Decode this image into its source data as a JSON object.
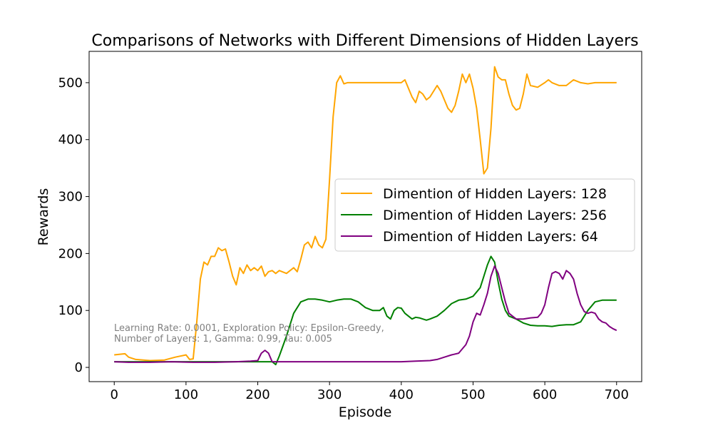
{
  "chart_data": {
    "type": "line",
    "title": "Comparisons of Networks with Different Dimensions of Hidden Layers",
    "xlabel": "Episode",
    "ylabel": "Rewards",
    "xlim": [
      -35,
      735
    ],
    "ylim": [
      -25,
      555
    ],
    "xticks": [
      0,
      100,
      200,
      300,
      400,
      500,
      600,
      700
    ],
    "yticks": [
      0,
      100,
      200,
      300,
      400,
      500
    ],
    "grid": false,
    "legend_position": "center-right",
    "annotation": [
      "Learning Rate: 0.0001, Exploration Policy: Epsilon-Greedy,",
      "Number of Layers: 1, Gamma: 0.99, Tau: 0.005"
    ],
    "series": [
      {
        "name": "Dimention of Hidden Layers: 128",
        "color": "#ffa500",
        "points": [
          [
            0,
            22
          ],
          [
            15,
            24
          ],
          [
            20,
            18
          ],
          [
            30,
            14
          ],
          [
            50,
            12
          ],
          [
            70,
            13
          ],
          [
            85,
            18
          ],
          [
            100,
            22
          ],
          [
            105,
            14
          ],
          [
            110,
            15
          ],
          [
            115,
            80
          ],
          [
            120,
            155
          ],
          [
            125,
            185
          ],
          [
            130,
            180
          ],
          [
            135,
            195
          ],
          [
            140,
            195
          ],
          [
            145,
            210
          ],
          [
            150,
            205
          ],
          [
            155,
            208
          ],
          [
            160,
            185
          ],
          [
            165,
            160
          ],
          [
            170,
            145
          ],
          [
            175,
            175
          ],
          [
            180,
            165
          ],
          [
            185,
            180
          ],
          [
            190,
            170
          ],
          [
            195,
            175
          ],
          [
            200,
            170
          ],
          [
            205,
            178
          ],
          [
            210,
            160
          ],
          [
            215,
            168
          ],
          [
            220,
            170
          ],
          [
            225,
            165
          ],
          [
            230,
            170
          ],
          [
            240,
            165
          ],
          [
            250,
            175
          ],
          [
            255,
            168
          ],
          [
            260,
            190
          ],
          [
            265,
            215
          ],
          [
            270,
            220
          ],
          [
            275,
            210
          ],
          [
            280,
            230
          ],
          [
            285,
            215
          ],
          [
            290,
            210
          ],
          [
            295,
            225
          ],
          [
            300,
            330
          ],
          [
            305,
            440
          ],
          [
            310,
            500
          ],
          [
            315,
            512
          ],
          [
            320,
            498
          ],
          [
            325,
            500
          ],
          [
            340,
            500
          ],
          [
            360,
            500
          ],
          [
            380,
            500
          ],
          [
            395,
            500
          ],
          [
            400,
            500
          ],
          [
            405,
            505
          ],
          [
            410,
            490
          ],
          [
            415,
            475
          ],
          [
            420,
            465
          ],
          [
            425,
            485
          ],
          [
            430,
            480
          ],
          [
            435,
            470
          ],
          [
            440,
            475
          ],
          [
            445,
            485
          ],
          [
            450,
            495
          ],
          [
            455,
            485
          ],
          [
            460,
            470
          ],
          [
            465,
            455
          ],
          [
            470,
            448
          ],
          [
            475,
            460
          ],
          [
            480,
            485
          ],
          [
            485,
            515
          ],
          [
            490,
            500
          ],
          [
            495,
            515
          ],
          [
            500,
            490
          ],
          [
            505,
            455
          ],
          [
            510,
            400
          ],
          [
            515,
            340
          ],
          [
            520,
            350
          ],
          [
            525,
            420
          ],
          [
            530,
            528
          ],
          [
            535,
            510
          ],
          [
            540,
            505
          ],
          [
            545,
            505
          ],
          [
            550,
            480
          ],
          [
            555,
            460
          ],
          [
            560,
            452
          ],
          [
            565,
            455
          ],
          [
            570,
            480
          ],
          [
            575,
            515
          ],
          [
            580,
            495
          ],
          [
            590,
            492
          ],
          [
            600,
            500
          ],
          [
            605,
            505
          ],
          [
            610,
            500
          ],
          [
            620,
            495
          ],
          [
            630,
            495
          ],
          [
            640,
            505
          ],
          [
            650,
            500
          ],
          [
            660,
            498
          ],
          [
            670,
            500
          ],
          [
            680,
            500
          ],
          [
            690,
            500
          ],
          [
            700,
            500
          ]
        ]
      },
      {
        "name": "Dimention of Hidden Layers: 256",
        "color": "#008000",
        "points": [
          [
            0,
            10
          ],
          [
            20,
            10
          ],
          [
            50,
            10
          ],
          [
            80,
            10
          ],
          [
            110,
            10
          ],
          [
            150,
            10
          ],
          [
            180,
            10
          ],
          [
            200,
            10
          ],
          [
            210,
            10
          ],
          [
            220,
            10
          ],
          [
            225,
            5
          ],
          [
            230,
            20
          ],
          [
            240,
            55
          ],
          [
            250,
            95
          ],
          [
            255,
            105
          ],
          [
            260,
            115
          ],
          [
            270,
            120
          ],
          [
            280,
            120
          ],
          [
            290,
            118
          ],
          [
            300,
            115
          ],
          [
            310,
            118
          ],
          [
            320,
            120
          ],
          [
            330,
            120
          ],
          [
            340,
            115
          ],
          [
            350,
            105
          ],
          [
            360,
            100
          ],
          [
            370,
            100
          ],
          [
            375,
            105
          ],
          [
            380,
            90
          ],
          [
            385,
            85
          ],
          [
            390,
            100
          ],
          [
            395,
            105
          ],
          [
            400,
            104
          ],
          [
            405,
            95
          ],
          [
            410,
            90
          ],
          [
            415,
            85
          ],
          [
            420,
            88
          ],
          [
            425,
            87
          ],
          [
            430,
            85
          ],
          [
            435,
            83
          ],
          [
            440,
            85
          ],
          [
            450,
            90
          ],
          [
            460,
            100
          ],
          [
            470,
            112
          ],
          [
            480,
            118
          ],
          [
            490,
            120
          ],
          [
            500,
            125
          ],
          [
            510,
            140
          ],
          [
            515,
            160
          ],
          [
            520,
            180
          ],
          [
            525,
            195
          ],
          [
            530,
            185
          ],
          [
            535,
            150
          ],
          [
            540,
            120
          ],
          [
            545,
            100
          ],
          [
            550,
            90
          ],
          [
            560,
            85
          ],
          [
            570,
            78
          ],
          [
            580,
            74
          ],
          [
            590,
            73
          ],
          [
            600,
            73
          ],
          [
            610,
            72
          ],
          [
            620,
            74
          ],
          [
            630,
            75
          ],
          [
            640,
            75
          ],
          [
            650,
            80
          ],
          [
            660,
            100
          ],
          [
            670,
            115
          ],
          [
            680,
            118
          ],
          [
            690,
            118
          ],
          [
            700,
            118
          ]
        ]
      },
      {
        "name": "Dimention of Hidden Layers: 64",
        "color": "#800080",
        "points": [
          [
            0,
            10
          ],
          [
            20,
            9
          ],
          [
            50,
            9
          ],
          [
            80,
            10
          ],
          [
            110,
            9
          ],
          [
            140,
            9
          ],
          [
            170,
            10
          ],
          [
            190,
            11
          ],
          [
            200,
            12
          ],
          [
            205,
            25
          ],
          [
            210,
            30
          ],
          [
            215,
            25
          ],
          [
            220,
            10
          ],
          [
            230,
            10
          ],
          [
            260,
            10
          ],
          [
            300,
            10
          ],
          [
            350,
            10
          ],
          [
            400,
            10
          ],
          [
            420,
            11
          ],
          [
            440,
            12
          ],
          [
            450,
            14
          ],
          [
            460,
            18
          ],
          [
            470,
            22
          ],
          [
            480,
            25
          ],
          [
            490,
            40
          ],
          [
            495,
            55
          ],
          [
            500,
            80
          ],
          [
            505,
            95
          ],
          [
            510,
            92
          ],
          [
            515,
            110
          ],
          [
            520,
            130
          ],
          [
            525,
            160
          ],
          [
            530,
            178
          ],
          [
            535,
            165
          ],
          [
            540,
            140
          ],
          [
            545,
            115
          ],
          [
            550,
            95
          ],
          [
            555,
            90
          ],
          [
            560,
            85
          ],
          [
            570,
            85
          ],
          [
            580,
            87
          ],
          [
            590,
            88
          ],
          [
            595,
            95
          ],
          [
            600,
            110
          ],
          [
            605,
            140
          ],
          [
            610,
            165
          ],
          [
            615,
            168
          ],
          [
            620,
            165
          ],
          [
            625,
            155
          ],
          [
            630,
            170
          ],
          [
            635,
            165
          ],
          [
            640,
            155
          ],
          [
            645,
            130
          ],
          [
            650,
            110
          ],
          [
            655,
            98
          ],
          [
            660,
            95
          ],
          [
            665,
            97
          ],
          [
            670,
            95
          ],
          [
            675,
            85
          ],
          [
            680,
            80
          ],
          [
            685,
            78
          ],
          [
            690,
            72
          ],
          [
            695,
            68
          ],
          [
            700,
            65
          ]
        ]
      }
    ]
  }
}
